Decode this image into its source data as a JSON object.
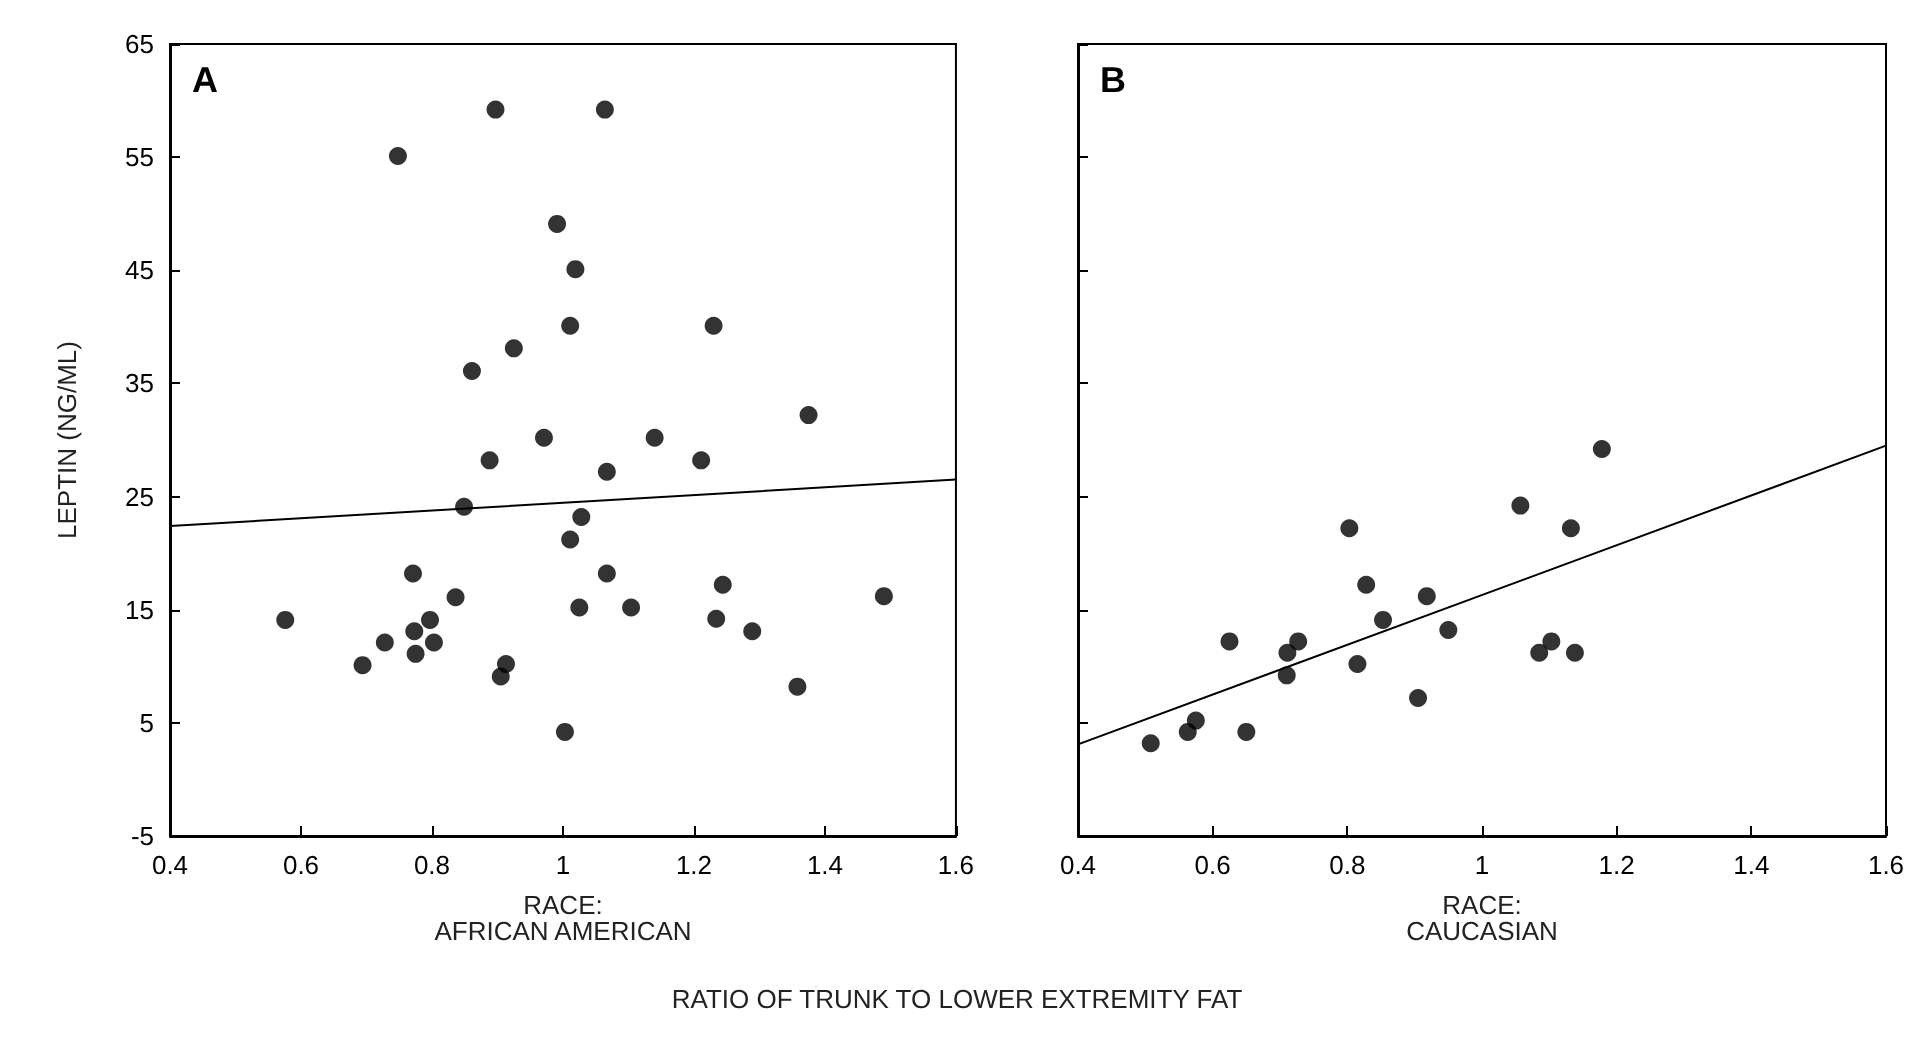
{
  "chart_data": [
    {
      "type": "scatter",
      "title": "A",
      "xlabel": "RACE:\nAFRICAN AMERICAN",
      "ylabel": "LEPTIN (NG/ML)",
      "xlim": [
        0.4,
        1.6
      ],
      "xticks": [
        0.4,
        0.6,
        0.8,
        1,
        1.2,
        1.4,
        1.6
      ],
      "ylim": [
        -5,
        65
      ],
      "yticks": [
        -5,
        5,
        15,
        25,
        35,
        45,
        55,
        65
      ],
      "marker": "circle",
      "annotations": [
        "RATIO OF TRUNK TO LOWER EXTREMITY FAT"
      ],
      "series": [
        {
          "color": "#000000",
          "x": [
            0.748,
            0.897,
            1.064,
            0.991,
            1.019,
            1.011,
            1.23,
            0.925,
            0.861,
            1.375,
            0.971,
            1.14,
            0.888,
            1.211,
            1.067,
            0.849,
            1.028,
            1.011,
            0.771,
            1.067,
            1.244,
            0.836,
            1.49,
            1.025,
            1.104,
            0.576,
            0.797,
            1.234,
            0.773,
            1.289,
            0.728,
            0.803,
            0.775,
            0.694,
            0.913,
            0.905,
            1.358,
            1.003
          ],
          "values": [
            55.1,
            59.2,
            59.2,
            49.1,
            45.1,
            40.1,
            40.1,
            38.1,
            36.1,
            32.2,
            30.2,
            30.2,
            28.2,
            28.2,
            27.2,
            24.1,
            23.2,
            21.2,
            18.2,
            18.2,
            17.2,
            16.1,
            16.2,
            15.2,
            15.2,
            14.1,
            14.1,
            14.2,
            13.1,
            13.1,
            12.1,
            12.1,
            11.1,
            10.1,
            10.2,
            9.1,
            8.2,
            4.2
          ]
        },
        {
          "type": "line",
          "marker": "none",
          "line_style": "solid",
          "color": "#000000",
          "x": [
            0.4,
            1.6
          ],
          "values": [
            22.4,
            26.5
          ]
        }
      ]
    },
    {
      "type": "scatter",
      "title": "B",
      "xlabel": "RACE:\nCAUCASIAN",
      "xlim": [
        0.4,
        1.6
      ],
      "xticks": [
        0.4,
        0.6,
        0.8,
        1,
        1.2,
        1.4,
        1.6
      ],
      "ylim": [
        -5,
        65
      ],
      "yticks": [
        -5,
        5,
        15,
        25,
        35,
        45,
        55,
        65
      ],
      "tick_labels": "x",
      "marker": "circle",
      "series": [
        {
          "color": "#000000",
          "x": [
            1.178,
            1.057,
            0.803,
            1.132,
            0.828,
            0.918,
            0.853,
            0.95,
            0.625,
            0.727,
            0.711,
            1.103,
            1.085,
            1.138,
            0.815,
            0.71,
            0.905,
            0.575,
            0.563,
            0.65,
            0.508
          ],
          "values": [
            29.2,
            24.2,
            22.2,
            22.2,
            17.2,
            16.2,
            14.1,
            13.2,
            12.2,
            12.2,
            11.2,
            12.2,
            11.2,
            11.2,
            10.2,
            9.2,
            7.2,
            5.2,
            4.2,
            4.2,
            3.2
          ]
        },
        {
          "type": "line",
          "marker": "none",
          "line_style": "solid",
          "color": "#000000",
          "x": [
            0.4,
            1.6
          ],
          "values": [
            3.1,
            29.5
          ]
        }
      ]
    }
  ]
}
